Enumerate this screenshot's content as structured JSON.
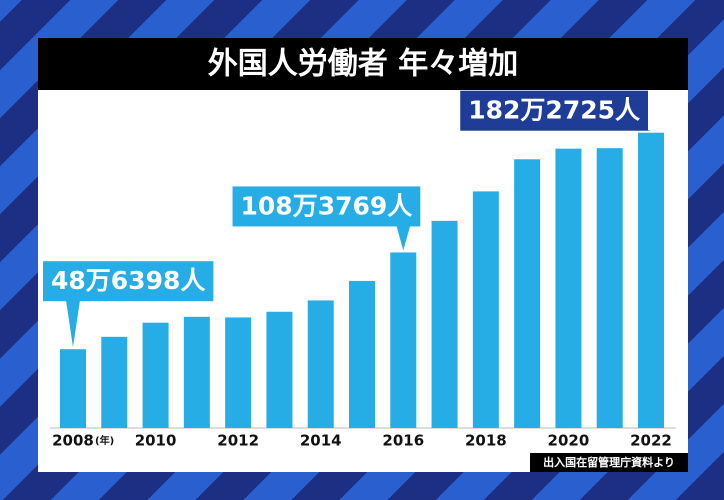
{
  "chart_data": {
    "type": "bar",
    "title": "外国人労働者 年々増加",
    "categories": [
      "2008",
      null,
      "2010",
      null,
      "2012",
      null,
      "2014",
      null,
      "2016",
      null,
      "2018",
      null,
      "2020",
      null,
      "2022"
    ],
    "x_unit": "(年)",
    "values": [
      486398,
      562818,
      649982,
      686246,
      682450,
      717504,
      787627,
      907896,
      1083769,
      1278670,
      1460463,
      1658804,
      1724328,
      1727221,
      1822725
    ],
    "value_labels": [
      "48万6398人",
      null,
      null,
      null,
      null,
      null,
      null,
      null,
      "108万3769人",
      null,
      null,
      null,
      null,
      null,
      "182万2725人"
    ],
    "color": "#27ade6",
    "ylim": [
      0,
      2000000
    ],
    "source": "出入国在留管理庁資料より"
  }
}
